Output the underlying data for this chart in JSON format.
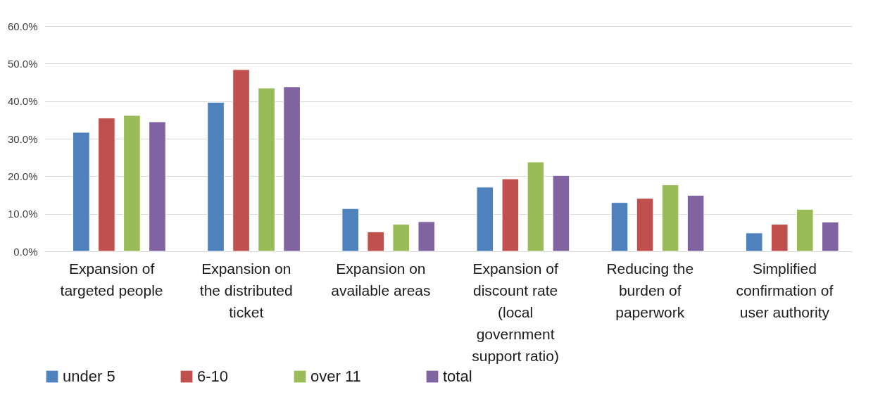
{
  "chart_data": {
    "type": "bar",
    "categories": [
      "Expansion of targeted people",
      "Expansion on the distributed ticket",
      "Expansion on available areas",
      "Expansion of discount rate (local government support ratio)",
      "Reducing the burden of paperwork",
      "Simplified confirmation of user authority"
    ],
    "series": [
      {
        "name": "under 5",
        "color": "#4f81bd",
        "values": [
          31.7,
          39.7,
          11.4,
          17.1,
          13.0,
          4.9
        ]
      },
      {
        "name": "6-10",
        "color": "#c0504d",
        "values": [
          35.5,
          48.4,
          5.2,
          19.3,
          14.1,
          7.2
        ]
      },
      {
        "name": "over 11",
        "color": "#9bbb59",
        "values": [
          36.2,
          43.5,
          7.2,
          23.8,
          17.7,
          11.2
        ]
      },
      {
        "name": "total",
        "color": "#8064a2",
        "values": [
          34.5,
          43.8,
          7.9,
          20.2,
          14.9,
          7.8
        ]
      }
    ],
    "ylim": [
      0,
      60
    ],
    "yticks": [
      {
        "value": 0,
        "label": "0.0%"
      },
      {
        "value": 10,
        "label": "10.0%"
      },
      {
        "value": 20,
        "label": "20.0%"
      },
      {
        "value": 30,
        "label": "30.0%"
      },
      {
        "value": 40,
        "label": "40.0%"
      },
      {
        "value": 50,
        "label": "50.0%"
      },
      {
        "value": 60,
        "label": "60.0%"
      }
    ],
    "grid": "y",
    "legend": "bottom"
  }
}
